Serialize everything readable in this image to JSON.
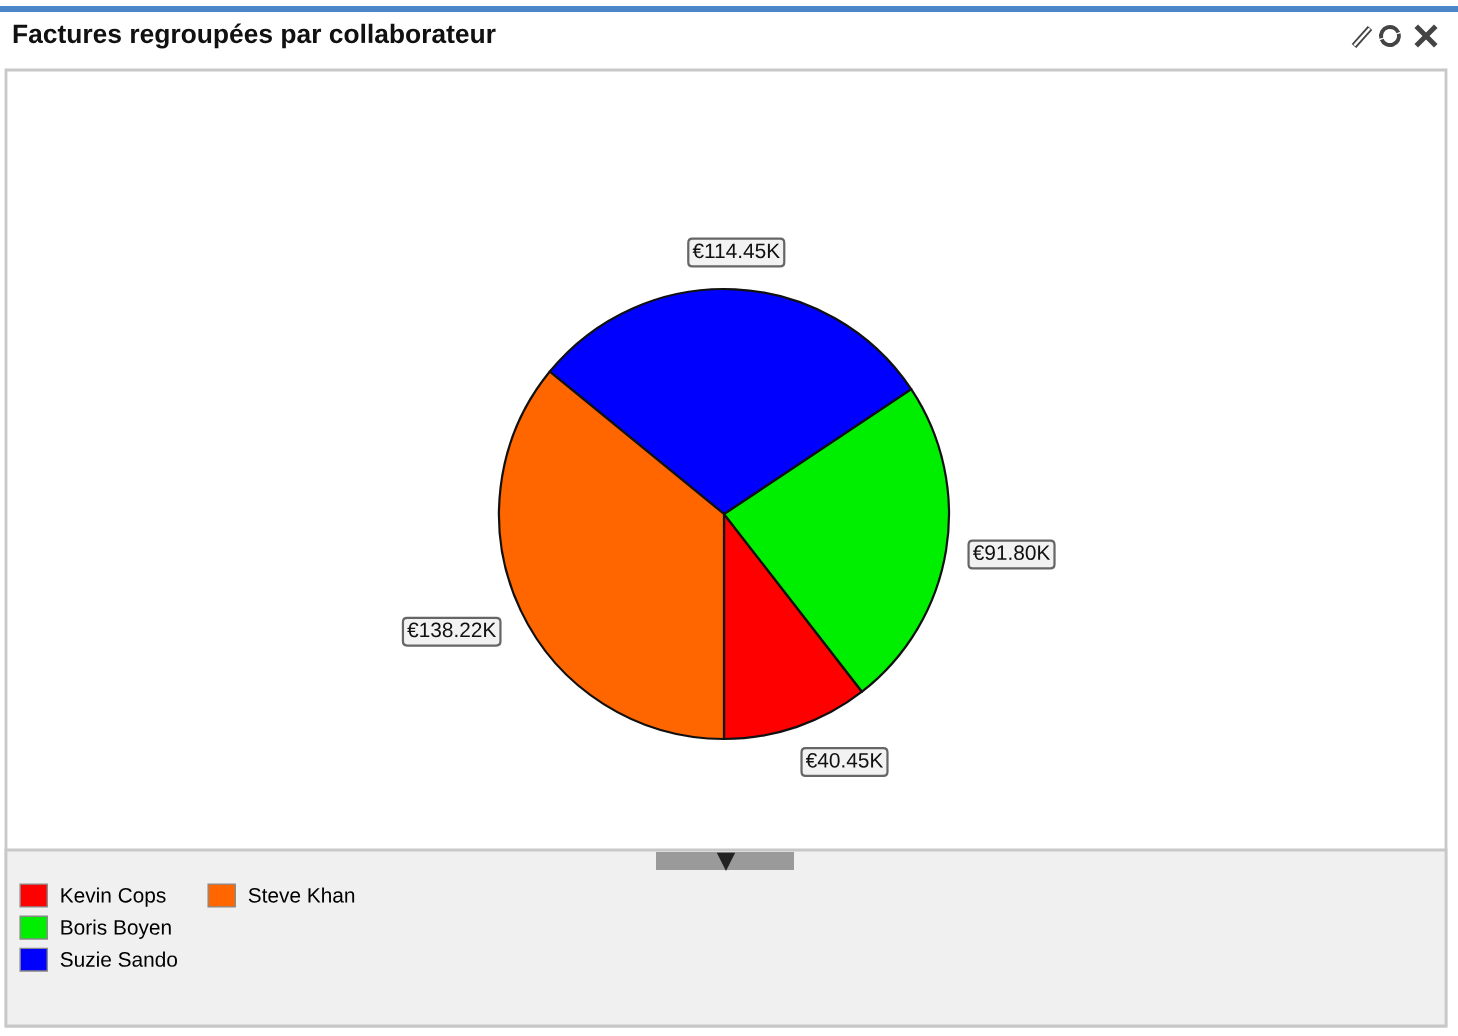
{
  "chart_data": {
    "type": "pie",
    "title": "Factures regroupées par collaborateur",
    "categories": [
      "Kevin Cops",
      "Boris Boyen",
      "Suzie Sando",
      "Steve Khan"
    ],
    "values": [
      40.45,
      91.8,
      114.45,
      138.22
    ],
    "colors": [
      "#ff0000",
      "#00ee00",
      "#0000ff",
      "#ff6600"
    ],
    "value_labels": [
      "€40.45K",
      "€91.80K",
      "€114.45K",
      "€138.22K"
    ],
    "legend": "bottom left"
  }
}
